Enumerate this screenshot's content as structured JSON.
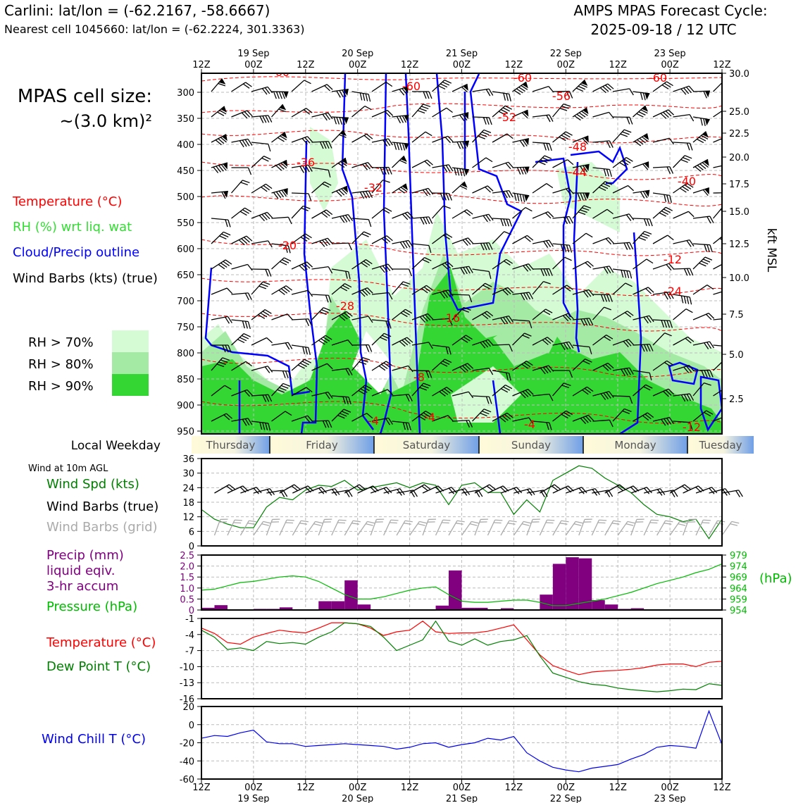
{
  "header": {
    "site_title": "Carlini: lat/lon = (-62.2167, -58.6667)",
    "cell_line": "Nearest cell 1045660: lat/lon = (-62.2224, 301.3363)",
    "cycle_line1": "AMPS MPAS Forecast Cycle:",
    "cycle_line2": "2025-09-18 / 12 UTC"
  },
  "time_axis": {
    "ticks": [
      "12Z",
      "00Z",
      "12Z",
      "00Z",
      "12Z",
      "00Z",
      "12Z",
      "00Z",
      "12Z",
      "00Z",
      "12Z"
    ],
    "dates": [
      "19 Sep",
      "20 Sep",
      "21 Sep",
      "22 Sep",
      "23 Sep"
    ]
  },
  "weekdays": {
    "label": "Local Weekday",
    "days": [
      "Thursday",
      "Friday",
      "Saturday",
      "Sunday",
      "Monday",
      "Tuesday"
    ]
  },
  "legend": {
    "cell_size_line1": "MPAS cell size:",
    "cell_size_line2": "~(3.0 km)²",
    "temperature": "Temperature (°C)",
    "rh": "RH (%) wrt liq. wat",
    "cloud": "Cloud/Precip outline",
    "barbs": "Wind Barbs (kts) (true)",
    "rh70": "RH > 70%",
    "rh80": "RH > 80%",
    "rh90": "RH > 90%",
    "colors": {
      "rh70": "#d4fbd4",
      "rh80": "#a4eaa4",
      "rh90": "#33d633",
      "temp": "#ff0000",
      "cloud": "#0000ff",
      "ptext": "#800080",
      "pres": "#00bb00",
      "dew": "#008000",
      "chill": "#0000ee"
    }
  },
  "profile": {
    "pressure_ticks": [
      "300",
      "350",
      "400",
      "450",
      "500",
      "550",
      "600",
      "650",
      "700",
      "750",
      "800",
      "850",
      "900",
      "950"
    ],
    "height_ticks": [
      "30.0",
      "25.0",
      "22.5",
      "20.0",
      "17.5",
      "15.0",
      "12.5",
      "10.0",
      "7.5",
      "5.0",
      "2.5"
    ],
    "height_unit": "kft MSL",
    "temp_contour_labels": [
      "-60",
      "-60",
      "-60",
      "-60",
      "-56",
      "-52",
      "-48",
      "-44",
      "-40",
      "-36",
      "-32",
      "-28",
      "-24",
      "-20",
      "-16",
      "-12",
      "-8",
      "-4",
      "-4",
      "-4",
      "-12"
    ]
  },
  "wind_panel": {
    "title": "Wind at 10m AGL",
    "spd_label": "Wind Spd (kts)",
    "barbs_true": "Wind Barbs (true)",
    "barbs_grid": "Wind Barbs (grid)",
    "yticks": [
      "36",
      "30",
      "24",
      "18",
      "12",
      "6",
      "0"
    ]
  },
  "precip_panel": {
    "label1": "Precip (mm)",
    "label2": "liquid eqiv.",
    "label3": "3-hr accum",
    "pres_label": "Pressure (hPa)",
    "hpa": "(hPa)",
    "left_ticks": [
      "2.5",
      "2.0",
      "1.5",
      "1.0",
      "0.5",
      "0"
    ],
    "right_ticks": [
      "979",
      "974",
      "969",
      "964",
      "959",
      "954"
    ]
  },
  "temp_panel": {
    "t_label": "Temperature (°C)",
    "td_label": "Dew Point T (°C)",
    "yticks": [
      "-1",
      "-4",
      "-7",
      "-10",
      "-13",
      "-16"
    ]
  },
  "chill_panel": {
    "label": "Wind Chill T (°C)",
    "yticks": [
      "20",
      "0",
      "-20",
      "-40",
      "-60"
    ]
  },
  "chart_data": [
    {
      "type": "line",
      "title": "Wind at 10m AGL",
      "ylabel": "Wind Spd (kts)",
      "ylim": [
        0,
        36
      ],
      "x_hours": [
        0,
        3,
        6,
        9,
        12,
        15,
        18,
        21,
        24,
        27,
        30,
        33,
        36,
        39,
        42,
        45,
        48,
        51,
        54,
        57,
        60,
        63,
        66,
        69,
        72,
        75,
        78,
        81,
        84,
        87,
        90,
        93,
        96,
        99,
        102,
        105,
        108,
        111,
        114,
        117,
        120
      ],
      "series": [
        {
          "name": "Wind Spd (kts)",
          "values": [
            15,
            11,
            9,
            7.5,
            7.5,
            16,
            20,
            19,
            23,
            25,
            24.5,
            27,
            23,
            24,
            25,
            26,
            24,
            26,
            25,
            17,
            25,
            26,
            22,
            22,
            13,
            19,
            14,
            27,
            30,
            33,
            32,
            28,
            25,
            22,
            17,
            13,
            12,
            10,
            11,
            3,
            11
          ]
        }
      ]
    },
    {
      "type": "bar",
      "title": "Precip (mm) liquid eqiv. 3-hr accum",
      "ylim": [
        0,
        2.5
      ],
      "x_hours": [
        0,
        3,
        6,
        9,
        12,
        15,
        18,
        21,
        24,
        27,
        30,
        33,
        36,
        39,
        42,
        45,
        48,
        51,
        54,
        57,
        60,
        63,
        66,
        69,
        72,
        75,
        78,
        81,
        84,
        87,
        90,
        93,
        96,
        99,
        102,
        105,
        108,
        111,
        114,
        117
      ],
      "values": [
        0.1,
        0.22,
        0,
        0,
        0.05,
        0.05,
        0.12,
        0,
        0,
        0.4,
        0.4,
        1.35,
        0.25,
        0,
        0,
        0,
        0,
        0,
        0.2,
        1.8,
        0.1,
        0.1,
        0,
        0.08,
        0,
        0,
        0.7,
        2.1,
        2.4,
        2.35,
        0.45,
        0.25,
        0.05,
        0.08,
        0,
        0,
        0,
        0,
        0,
        0
      ]
    },
    {
      "type": "line",
      "title": "Pressure (hPa)",
      "ylim": [
        954,
        979
      ],
      "x_hours": [
        0,
        3,
        6,
        9,
        12,
        15,
        18,
        21,
        24,
        27,
        30,
        33,
        36,
        39,
        42,
        45,
        48,
        51,
        54,
        57,
        60,
        63,
        66,
        69,
        72,
        75,
        78,
        81,
        84,
        87,
        90,
        93,
        96,
        99,
        102,
        105,
        108,
        111,
        114,
        117,
        120
      ],
      "values": [
        963,
        963.5,
        965,
        966.5,
        967,
        968,
        969,
        969.5,
        969,
        967,
        964,
        961,
        959,
        959,
        960,
        961.5,
        963,
        964,
        964.5,
        961,
        958,
        957.5,
        957.5,
        958,
        958.5,
        958.5,
        957.5,
        956,
        956,
        957,
        958,
        959,
        960.5,
        962,
        964,
        966,
        967.5,
        969,
        971,
        972.5,
        975
      ]
    },
    {
      "type": "line",
      "title": "Temperature / Dew Point T (°C)",
      "ylim": [
        -16,
        -1
      ],
      "x_hours": [
        0,
        3,
        6,
        9,
        12,
        15,
        18,
        21,
        24,
        27,
        30,
        33,
        36,
        39,
        42,
        45,
        48,
        51,
        54,
        57,
        60,
        63,
        66,
        69,
        72,
        75,
        78,
        81,
        84,
        87,
        90,
        93,
        96,
        99,
        102,
        105,
        108,
        111,
        114,
        117,
        120
      ],
      "series": [
        {
          "name": "Temperature (°C)",
          "values": [
            -2.8,
            -3.8,
            -5.5,
            -5.8,
            -4.5,
            -3.8,
            -3.2,
            -3.5,
            -3.7,
            -2.8,
            -1.8,
            -1.8,
            -2,
            -2.8,
            -4.2,
            -3.5,
            -3.2,
            -1.5,
            -3.5,
            -3.8,
            -3.7,
            -3.7,
            -3.4,
            -2.8,
            -2.2,
            -5,
            -7.8,
            -9.8,
            -10.7,
            -11.5,
            -11,
            -10.8,
            -10.7,
            -10.5,
            -10.2,
            -9.7,
            -9.5,
            -9.5,
            -10,
            -9.2,
            -9
          ]
        },
        {
          "name": "Dew Point T (°C)",
          "values": [
            -3.2,
            -4.5,
            -6.8,
            -6.5,
            -7,
            -5.3,
            -5.7,
            -5.5,
            -5.8,
            -4.5,
            -3.5,
            -1.8,
            -2,
            -2.5,
            -4.5,
            -7,
            -6,
            -5,
            -1.5,
            -5.2,
            -6,
            -4.8,
            -6,
            -5.3,
            -5,
            -4.2,
            -8,
            -11.2,
            -12,
            -12.8,
            -13.3,
            -13.5,
            -14,
            -14.3,
            -14.5,
            -14.7,
            -14.5,
            -14.2,
            -14.3,
            -13.2,
            -13.5
          ]
        }
      ]
    },
    {
      "type": "line",
      "title": "Wind Chill T (°C)",
      "ylim": [
        -60,
        20
      ],
      "x_hours": [
        0,
        3,
        6,
        9,
        12,
        15,
        18,
        21,
        24,
        27,
        30,
        33,
        36,
        39,
        42,
        45,
        48,
        51,
        54,
        57,
        60,
        63,
        66,
        69,
        72,
        75,
        78,
        81,
        84,
        87,
        90,
        93,
        96,
        99,
        102,
        105,
        108,
        111,
        114,
        117,
        120
      ],
      "values": [
        -15,
        -12,
        -13,
        -9,
        -6,
        -19,
        -21,
        -21,
        -24,
        -23,
        -22,
        -21,
        -22,
        -23,
        -24,
        -27,
        -25,
        -21,
        -20,
        -25,
        -22,
        -20,
        -15,
        -17,
        -13,
        -31,
        -40,
        -47,
        -50,
        -52,
        -48,
        -46,
        -44,
        -38,
        -33,
        -25,
        -23,
        -24,
        -26,
        15,
        -22
      ]
    }
  ]
}
